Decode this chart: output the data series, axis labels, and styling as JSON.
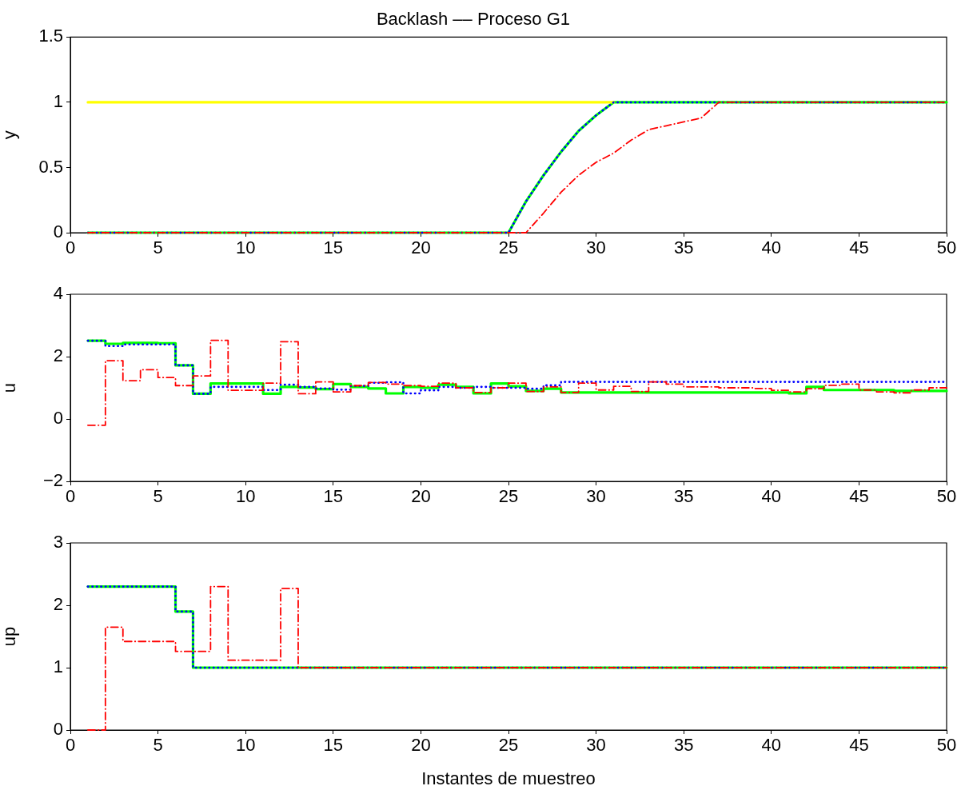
{
  "chart_data": [
    {
      "type": "line",
      "title": "Backlash –– Proceso G1",
      "ylabel": "y",
      "x": [
        1,
        2,
        3,
        4,
        5,
        6,
        7,
        8,
        9,
        10,
        11,
        12,
        13,
        14,
        15,
        16,
        17,
        18,
        19,
        20,
        21,
        22,
        23,
        24,
        25,
        26,
        27,
        28,
        29,
        30,
        31,
        32,
        33,
        34,
        35,
        36,
        37,
        38,
        39,
        40,
        41,
        42,
        43,
        44,
        45,
        46,
        47,
        48,
        49,
        50
      ],
      "xlim": [
        0,
        50
      ],
      "xticks": [
        0,
        5,
        10,
        15,
        20,
        25,
        30,
        35,
        40,
        45,
        50
      ],
      "ylim": [
        0,
        1.5
      ],
      "yticks": [
        0,
        0.5,
        1,
        1.5
      ],
      "grid": false,
      "marker": "none",
      "series": [
        {
          "color": "#ffff00",
          "line_style": "solid",
          "values": [
            1,
            1,
            1,
            1,
            1,
            1,
            1,
            1,
            1,
            1,
            1,
            1,
            1,
            1,
            1,
            1,
            1,
            1,
            1,
            1,
            1,
            1,
            1,
            1,
            1,
            1,
            1,
            1,
            1,
            1,
            1,
            null,
            null,
            null,
            null,
            null,
            null,
            null,
            null,
            null,
            null,
            null,
            null,
            null,
            null,
            null,
            null,
            null,
            null,
            null
          ]
        },
        {
          "color": "#0000ff",
          "line_style": "dotted",
          "values": [
            0,
            0,
            0,
            0,
            0,
            0,
            0,
            0,
            0,
            0,
            0,
            0,
            0,
            0,
            0,
            0,
            0,
            0,
            0,
            0,
            0,
            0,
            0,
            0,
            0,
            0.24,
            0.44,
            0.62,
            0.78,
            0.9,
            1,
            1,
            1,
            1,
            1,
            1,
            1,
            1,
            1,
            1,
            1,
            1,
            1,
            1,
            1,
            1,
            1,
            1,
            1,
            1
          ]
        },
        {
          "color": "#00ff00",
          "line_style": "solid",
          "values": [
            0,
            0,
            0,
            0,
            0,
            0,
            0,
            0,
            0,
            0,
            0,
            0,
            0,
            0,
            0,
            0,
            0,
            0,
            0,
            0,
            0,
            0,
            0,
            0,
            0,
            0.24,
            0.44,
            0.62,
            0.78,
            0.9,
            1,
            1,
            1,
            1,
            1,
            1,
            1,
            1,
            1,
            1,
            1,
            1,
            1,
            1,
            1,
            1,
            1,
            1,
            1,
            1
          ]
        },
        {
          "color": "#ff0000",
          "line_style": "dashed",
          "values": [
            0,
            0,
            0,
            0,
            0,
            0,
            0,
            0,
            0,
            0,
            0,
            0,
            0,
            0,
            0,
            0,
            0,
            0,
            0,
            0,
            0,
            0,
            0,
            0,
            0,
            0,
            0.15,
            0.31,
            0.44,
            0.54,
            0.61,
            0.71,
            0.79,
            0.82,
            0.85,
            0.88,
            1,
            1,
            1,
            1,
            1,
            1,
            1,
            1,
            1,
            1,
            1,
            1,
            1,
            1
          ]
        }
      ]
    },
    {
      "type": "step",
      "ylabel": "u",
      "x": [
        1,
        2,
        3,
        4,
        5,
        6,
        7,
        8,
        9,
        10,
        11,
        12,
        13,
        14,
        15,
        16,
        17,
        18,
        19,
        20,
        21,
        22,
        23,
        24,
        25,
        26,
        27,
        28,
        29,
        30,
        31,
        32,
        33,
        34,
        35,
        36,
        37,
        38,
        39,
        40,
        41,
        42,
        43,
        44,
        45,
        46,
        47,
        48,
        49,
        50
      ],
      "xlim": [
        0,
        50
      ],
      "xticks": [
        0,
        5,
        10,
        15,
        20,
        25,
        30,
        35,
        40,
        45,
        50
      ],
      "ylim": [
        -2,
        4
      ],
      "yticks": [
        {
          "value": -2,
          "label": "−2"
        },
        0,
        2,
        4
      ],
      "grid": false,
      "marker": "none",
      "series": [
        {
          "color": "#0000ff",
          "line_style": "dotted",
          "values": [
            2.51,
            2.34,
            2.39,
            2.39,
            2.39,
            1.72,
            0.81,
            1.03,
            1.03,
            1.03,
            0.93,
            1.1,
            1.03,
            0.98,
            0.94,
            1.06,
            1.16,
            1.18,
            0.82,
            0.92,
            1.03,
            1.0,
            1.03,
            1.0,
            1.0,
            0.97,
            1.08,
            1.19,
            1.19,
            1.19,
            1.19,
            1.19,
            1.19,
            1.19,
            1.19,
            1.19,
            1.19,
            1.19,
            1.19,
            1.19,
            1.19,
            1.19,
            1.19,
            1.19,
            1.19,
            1.19,
            1.19,
            1.19,
            1.19,
            1.19
          ]
        },
        {
          "color": "#00ff00",
          "line_style": "solid",
          "values": [
            2.51,
            2.41,
            2.44,
            2.44,
            2.43,
            1.72,
            0.81,
            1.14,
            1.14,
            1.14,
            0.81,
            1.03,
            1.01,
            0.96,
            1.12,
            1.03,
            0.98,
            0.82,
            1.03,
            1.0,
            1.1,
            1.03,
            0.82,
            1.14,
            1.05,
            0.9,
            0.97,
            0.85,
            0.85,
            0.85,
            0.85,
            0.85,
            0.85,
            0.85,
            0.85,
            0.85,
            0.85,
            0.85,
            0.85,
            0.85,
            0.82,
            1.03,
            0.93,
            0.93,
            0.93,
            0.93,
            0.9,
            0.9,
            0.9,
            0.9
          ]
        },
        {
          "color": "#ff0000",
          "line_style": "dashed",
          "values": [
            -0.2,
            1.87,
            1.23,
            1.58,
            1.33,
            1.07,
            1.38,
            2.52,
            0.92,
            0.92,
            1.15,
            2.48,
            0.81,
            1.19,
            0.87,
            1.07,
            1.17,
            1.12,
            1.07,
            1.05,
            1.15,
            1.0,
            0.85,
            1.0,
            1.15,
            0.88,
            1.03,
            0.85,
            1.15,
            0.93,
            1.05,
            0.88,
            1.19,
            1.12,
            1.03,
            1.03,
            1.0,
            1.0,
            0.98,
            0.92,
            0.87,
            0.97,
            1.08,
            1.12,
            0.93,
            0.87,
            0.84,
            0.93,
            1.0,
            1.0
          ]
        }
      ]
    },
    {
      "type": "step",
      "ylabel": "up",
      "xlabel": "Instantes de muestreo",
      "x": [
        1,
        2,
        3,
        4,
        5,
        6,
        7,
        8,
        9,
        10,
        11,
        12,
        13,
        14,
        15,
        16,
        17,
        18,
        19,
        20,
        21,
        22,
        23,
        24,
        25,
        26,
        27,
        28,
        29,
        30,
        31,
        32,
        33,
        34,
        35,
        36,
        37,
        38,
        39,
        40,
        41,
        42,
        43,
        44,
        45,
        46,
        47,
        48,
        49,
        50
      ],
      "xlim": [
        0,
        50
      ],
      "xticks": [
        0,
        5,
        10,
        15,
        20,
        25,
        30,
        35,
        40,
        45,
        50
      ],
      "ylim": [
        0,
        3
      ],
      "yticks": [
        0,
        1,
        2,
        3
      ],
      "grid": false,
      "marker": "none",
      "series": [
        {
          "color": "#0000ff",
          "line_style": "dotted",
          "values": [
            2.3,
            2.3,
            2.3,
            2.3,
            2.3,
            1.9,
            1,
            1,
            1,
            1,
            1,
            1,
            1,
            1,
            1,
            1,
            1,
            1,
            1,
            1,
            1,
            1,
            1,
            1,
            1,
            1,
            1,
            1,
            1,
            1,
            1,
            1,
            1,
            1,
            1,
            1,
            1,
            1,
            1,
            1,
            1,
            1,
            1,
            1,
            1,
            1,
            1,
            1,
            1,
            1
          ]
        },
        {
          "color": "#00ff00",
          "line_style": "solid",
          "values": [
            2.3,
            2.3,
            2.3,
            2.3,
            2.3,
            1.9,
            1,
            1,
            1,
            1,
            1,
            1,
            1,
            1,
            1,
            1,
            1,
            1,
            1,
            1,
            1,
            1,
            1,
            1,
            1,
            1,
            1,
            1,
            1,
            1,
            1,
            1,
            1,
            1,
            1,
            1,
            1,
            1,
            1,
            1,
            1,
            1,
            1,
            1,
            1,
            1,
            1,
            1,
            1,
            1
          ]
        },
        {
          "color": "#ff0000",
          "line_style": "dashed",
          "values": [
            0,
            1.65,
            1.42,
            1.42,
            1.42,
            1.26,
            1.26,
            2.3,
            1.12,
            1.12,
            1.12,
            2.27,
            1,
            1,
            1,
            1,
            1,
            1,
            1,
            1,
            1,
            1,
            1,
            1,
            1,
            1,
            1,
            1,
            1,
            1,
            1,
            1,
            1,
            1,
            1,
            1,
            1,
            1,
            1,
            1,
            1,
            1,
            1,
            1,
            1,
            1,
            1,
            1,
            1,
            1
          ]
        }
      ]
    }
  ]
}
